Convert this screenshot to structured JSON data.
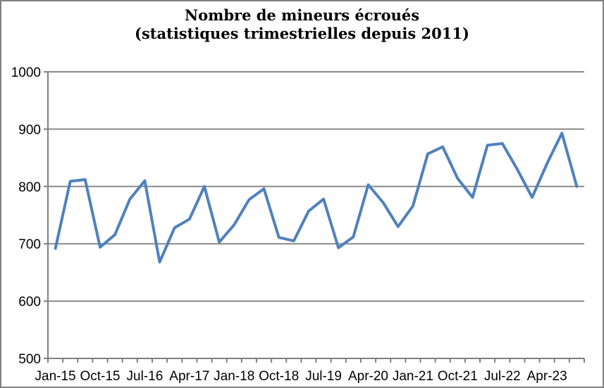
{
  "chart_data": {
    "type": "line",
    "title": "Nombre de mineurs écroués",
    "subtitle": "(statistiques trimestrielles depuis 2011)",
    "categories": [
      "Jan-15",
      "Apr-15",
      "Jul-15",
      "Oct-15",
      "Jan-16",
      "Apr-16",
      "Jul-16",
      "Oct-16",
      "Jan-17",
      "Apr-17",
      "Jul-17",
      "Oct-17",
      "Jan-18",
      "Apr-18",
      "Jul-18",
      "Oct-18",
      "Jan-19",
      "Apr-19",
      "Jul-19",
      "Oct-19",
      "Jan-20",
      "Apr-20",
      "Jul-20",
      "Oct-20",
      "Jan-21",
      "Apr-21",
      "Jul-21",
      "Oct-21",
      "Jan-22",
      "Apr-22",
      "Jul-22",
      "Oct-22",
      "Jan-23",
      "Apr-23",
      "Jul-23",
      "Oct-23"
    ],
    "values": [
      692,
      809,
      812,
      694,
      716,
      778,
      810,
      668,
      728,
      743,
      800,
      703,
      733,
      777,
      796,
      711,
      705,
      757,
      778,
      693,
      712,
      803,
      772,
      730,
      766,
      857,
      869,
      814,
      781,
      872,
      875,
      830,
      781,
      840,
      893,
      800
    ],
    "x_tick_labels_shown": [
      "Jan-15",
      "Oct-15",
      "Jul-16",
      "Apr-17",
      "Jan-18",
      "Oct-18",
      "Jul-19",
      "Apr-20",
      "Jan-21",
      "Oct-21",
      "Jul-22",
      "Apr-23"
    ],
    "x_label_interval": 3,
    "ylim": [
      500,
      1000
    ],
    "y_ticks": [
      500,
      600,
      700,
      800,
      900,
      1000
    ],
    "grid": true,
    "legend": "none",
    "colors": {
      "line": "#4F81BD",
      "grid": "#898989",
      "axis": "#7F7F7F",
      "text": "#000000",
      "frame_border": "#808080",
      "background": "#FFFFFF"
    }
  }
}
